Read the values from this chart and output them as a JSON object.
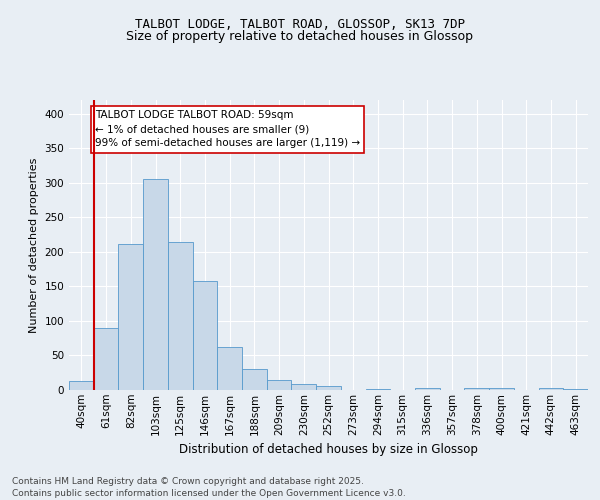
{
  "title_line1": "TALBOT LODGE, TALBOT ROAD, GLOSSOP, SK13 7DP",
  "title_line2": "Size of property relative to detached houses in Glossop",
  "xlabel": "Distribution of detached houses by size in Glossop",
  "ylabel": "Number of detached properties",
  "categories": [
    "40sqm",
    "61sqm",
    "82sqm",
    "103sqm",
    "125sqm",
    "146sqm",
    "167sqm",
    "188sqm",
    "209sqm",
    "230sqm",
    "252sqm",
    "273sqm",
    "294sqm",
    "315sqm",
    "336sqm",
    "357sqm",
    "378sqm",
    "400sqm",
    "421sqm",
    "442sqm",
    "463sqm"
  ],
  "values": [
    13,
    90,
    212,
    305,
    215,
    158,
    63,
    30,
    15,
    9,
    6,
    0,
    2,
    0,
    3,
    0,
    3,
    3,
    0,
    3,
    2
  ],
  "bar_color": "#c8d8e8",
  "bar_edge_color": "#5599cc",
  "vline_color": "#cc0000",
  "annotation_text": "TALBOT LODGE TALBOT ROAD: 59sqm\n← 1% of detached houses are smaller (9)\n99% of semi-detached houses are larger (1,119) →",
  "annotation_box_color": "#ffffff",
  "annotation_box_edge": "#cc0000",
  "ylim": [
    0,
    420
  ],
  "yticks": [
    0,
    50,
    100,
    150,
    200,
    250,
    300,
    350,
    400
  ],
  "footnote": "Contains HM Land Registry data © Crown copyright and database right 2025.\nContains public sector information licensed under the Open Government Licence v3.0.",
  "background_color": "#e8eef4",
  "plot_bg_color": "#e8eef4",
  "title1_fontsize": 9,
  "title2_fontsize": 9,
  "ylabel_fontsize": 8,
  "xlabel_fontsize": 8.5,
  "tick_fontsize": 7.5,
  "annot_fontsize": 7.5,
  "footnote_fontsize": 6.5
}
